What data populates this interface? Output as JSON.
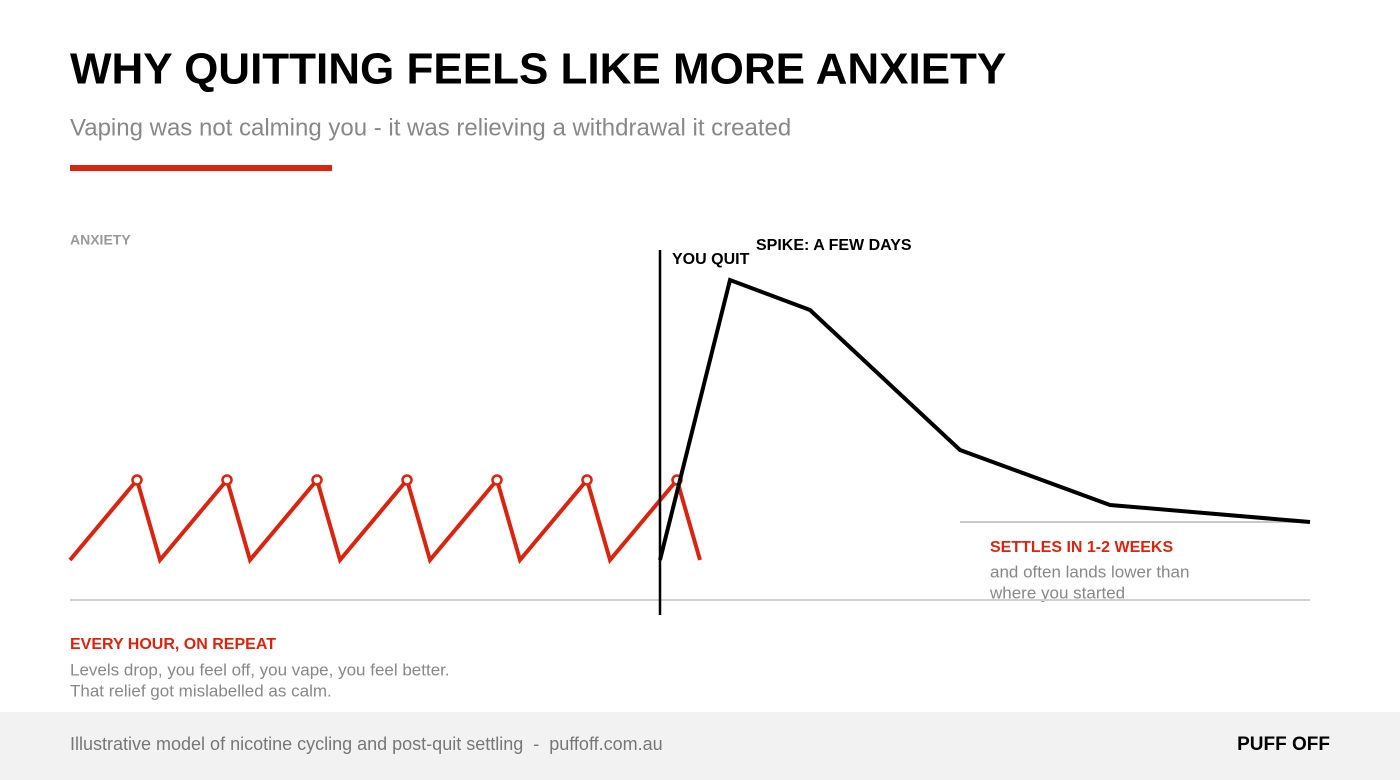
{
  "chart_data": {
    "type": "line",
    "title": "WHY QUITTING FEELS LIKE MORE ANXIETY",
    "subtitle": "Vaping was not calming you - it was relieving a withdrawal it created",
    "y_label": "ANXIETY",
    "xlim": [
      0,
      124
    ],
    "ylim": [
      0,
      100
    ],
    "series": [
      {
        "color": "#d9250f",
        "markers": true,
        "x": [
          0,
          6.7,
          9,
          15.7,
          18,
          24.7,
          27,
          33.7,
          36,
          42.7,
          45,
          51.7,
          54,
          60.7,
          63
        ],
        "values": [
          10,
          30,
          10,
          30,
          10,
          30,
          10,
          30,
          10,
          30,
          10,
          30,
          10,
          30,
          10
        ]
      },
      {
        "color": "#000000",
        "markers": false,
        "x": [
          59,
          66,
          74,
          89,
          104,
          124
        ],
        "values": [
          10,
          80,
          72.5,
          37.5,
          23.75,
          19.5
        ]
      }
    ],
    "quit": {
      "x": 59,
      "label": "YOU QUIT"
    },
    "spike_label": "SPIKE: A FEW DAYS",
    "settle": {
      "level": 19.5,
      "from_x": 89,
      "heading": "SETTLES IN 1-2 WEEKS",
      "lines": [
        "and often lands lower than",
        "where you started"
      ]
    },
    "cycle_note": {
      "heading": "EVERY HOUR, ON REPEAT",
      "lines": [
        "Levels drop, you feel off, you vape, you feel better.",
        "That relief got mislabelled as calm."
      ]
    }
  },
  "footer": {
    "source": "Illustrative model of nicotine cycling and post-quit settling  -  puffoff.com.au",
    "brand": "PUFF OFF"
  }
}
